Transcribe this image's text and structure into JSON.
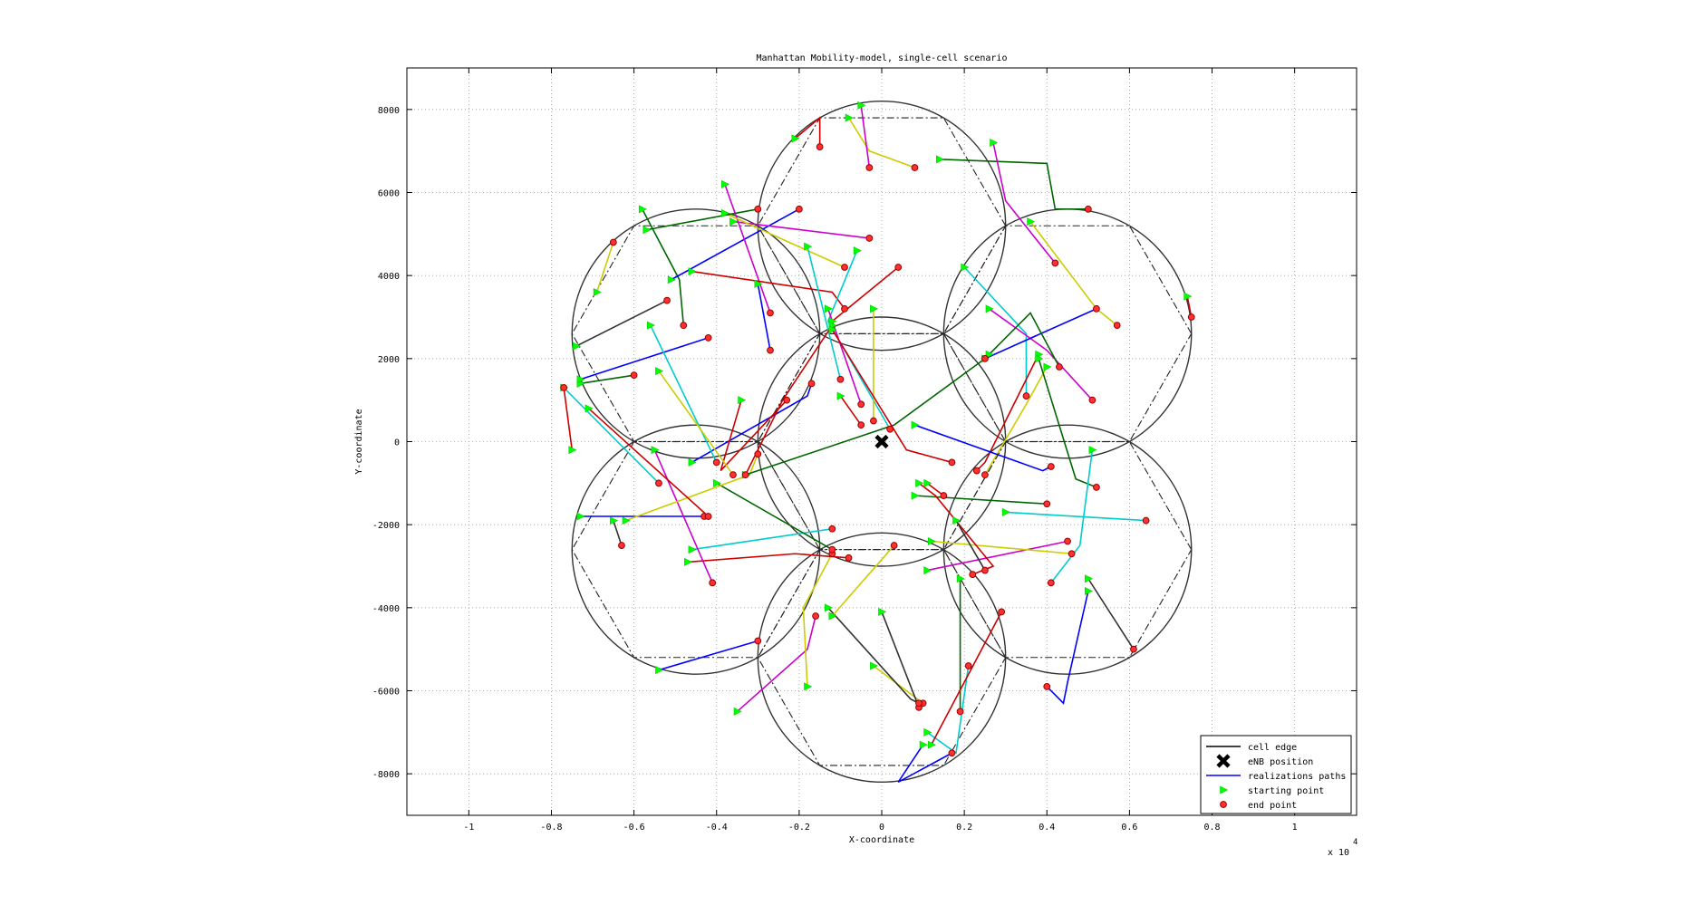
{
  "chart_data": {
    "type": "line",
    "title": "Manhattan Mobility-model, single-cell scenario",
    "xlabel": "X-coordinate",
    "ylabel": "Y-coordinate",
    "x_multiplier_label": "x 10",
    "x_multiplier_exponent": "4",
    "xlim": [
      -11500,
      11500
    ],
    "ylim": [
      -9000,
      9000
    ],
    "xticks": [
      -10000,
      -8000,
      -6000,
      -4000,
      -2000,
      0,
      2000,
      4000,
      6000,
      8000,
      10000
    ],
    "xtick_labels": [
      "-1",
      "-0.8",
      "-0.6",
      "-0.4",
      "-0.2",
      "0",
      "0.2",
      "0.4",
      "0.6",
      "0.8",
      "1"
    ],
    "yticks": [
      -8000,
      -6000,
      -4000,
      -2000,
      0,
      2000,
      4000,
      6000,
      8000
    ],
    "ytick_labels": [
      "-8000",
      "-6000",
      "-4000",
      "-2000",
      "0",
      "2000",
      "4000",
      "6000",
      "8000"
    ],
    "grid": true,
    "legend_position": "bottom-right",
    "legend": [
      {
        "label": "cell edge",
        "kind": "line",
        "color": "#000000"
      },
      {
        "label": "eNB position",
        "kind": "xmarker",
        "color": "#000000"
      },
      {
        "label": "realizations paths",
        "kind": "line",
        "color": "#0000ff"
      },
      {
        "label": "starting point",
        "kind": "triangle",
        "color": "#00ff00"
      },
      {
        "label": "end point",
        "kind": "circle",
        "color": "#ff0000"
      }
    ],
    "cell_radius": 3000,
    "hexagon_radius": 3000,
    "cell_centers": [
      [
        0,
        0
      ],
      [
        0,
        5200
      ],
      [
        4500,
        2600
      ],
      [
        4500,
        -2600
      ],
      [
        0,
        -5200
      ],
      [
        -4500,
        -2600
      ],
      [
        -4500,
        2600
      ]
    ],
    "enb_position": [
      0,
      0
    ],
    "paths": [
      {
        "color": "#cccc00",
        "points": [
          [
            -800,
            7800
          ],
          [
            -300,
            7000
          ],
          [
            800,
            6600
          ]
        ]
      },
      {
        "color": "#cc00cc",
        "points": [
          [
            -500,
            8100
          ],
          [
            -300,
            6600
          ]
        ]
      },
      {
        "color": "#cc0000",
        "points": [
          [
            -2100,
            7300
          ],
          [
            -1500,
            7800
          ],
          [
            -1500,
            7100
          ]
        ]
      },
      {
        "color": "#006600",
        "points": [
          [
            1400,
            6800
          ],
          [
            4000,
            6700
          ],
          [
            4200,
            5600
          ],
          [
            5000,
            5600
          ]
        ]
      },
      {
        "color": "#cc00cc",
        "points": [
          [
            2700,
            7200
          ],
          [
            3000,
            5800
          ],
          [
            4200,
            4300
          ]
        ]
      },
      {
        "color": "#cccc00",
        "points": [
          [
            3600,
            5300
          ],
          [
            5200,
            3200
          ],
          [
            5700,
            2800
          ]
        ]
      },
      {
        "color": "#cc0000",
        "points": [
          [
            7400,
            3500
          ],
          [
            7500,
            3000
          ]
        ]
      },
      {
        "color": "#00cccc",
        "points": [
          [
            2000,
            4200
          ],
          [
            3500,
            2600
          ],
          [
            3500,
            1100
          ]
        ]
      },
      {
        "color": "#cc00cc",
        "points": [
          [
            2600,
            3200
          ],
          [
            4000,
            2200
          ],
          [
            5100,
            1000
          ]
        ]
      },
      {
        "color": "#0000ff",
        "points": [
          [
            2500,
            2000
          ],
          [
            5200,
            3200
          ]
        ]
      },
      {
        "color": "#cc0000",
        "points": [
          [
            3800,
            2100
          ],
          [
            2500,
            -500
          ],
          [
            2300,
            -700
          ]
        ]
      },
      {
        "color": "#006600",
        "points": [
          [
            2600,
            2100
          ],
          [
            3600,
            3100
          ],
          [
            4300,
            1800
          ]
        ]
      },
      {
        "color": "#cccc00",
        "points": [
          [
            4000,
            1800
          ],
          [
            3500,
            900
          ],
          [
            2500,
            -800
          ]
        ]
      },
      {
        "color": "#0000ff",
        "points": [
          [
            800,
            400
          ],
          [
            3900,
            -700
          ],
          [
            4100,
            -600
          ]
        ]
      },
      {
        "color": "#006600",
        "points": [
          [
            3800,
            2000
          ],
          [
            4700,
            -900
          ],
          [
            5200,
            -1100
          ]
        ]
      },
      {
        "color": "#00cccc",
        "points": [
          [
            5100,
            -200
          ],
          [
            4800,
            -2500
          ],
          [
            4100,
            -3400
          ]
        ]
      },
      {
        "color": "#00cccc",
        "points": [
          [
            3000,
            -1700
          ],
          [
            6400,
            -1900
          ]
        ]
      },
      {
        "color": "#006600",
        "points": [
          [
            800,
            -1300
          ],
          [
            4000,
            -1500
          ]
        ]
      },
      {
        "color": "#cc00cc",
        "points": [
          [
            1100,
            -3100
          ],
          [
            4500,
            -2400
          ]
        ]
      },
      {
        "color": "#cccc00",
        "points": [
          [
            1200,
            -2400
          ],
          [
            4600,
            -2700
          ]
        ]
      },
      {
        "color": "#cc0000",
        "points": [
          [
            900,
            -1000
          ],
          [
            1300,
            -1300
          ],
          [
            2700,
            -3000
          ],
          [
            2200,
            -3200
          ]
        ]
      },
      {
        "color": "#333333",
        "points": [
          [
            1800,
            -1900
          ],
          [
            2500,
            -3100
          ]
        ]
      },
      {
        "color": "#0000ff",
        "points": [
          [
            5000,
            -3600
          ],
          [
            4500,
            -5800
          ],
          [
            4400,
            -6300
          ],
          [
            4000,
            -5900
          ]
        ]
      },
      {
        "color": "#333333",
        "points": [
          [
            5000,
            -3300
          ],
          [
            6100,
            -5000
          ]
        ]
      },
      {
        "color": "#cc0000",
        "points": [
          [
            1100,
            -1000
          ],
          [
            1500,
            -1300
          ]
        ]
      },
      {
        "color": "#0000ff",
        "points": [
          [
            1000,
            -7300
          ],
          [
            400,
            -8200
          ],
          [
            1700,
            -7500
          ]
        ]
      },
      {
        "color": "#00cccc",
        "points": [
          [
            1100,
            -7000
          ],
          [
            1800,
            -7500
          ],
          [
            2100,
            -5400
          ]
        ]
      },
      {
        "color": "#006600",
        "points": [
          [
            1900,
            -3300
          ],
          [
            1900,
            -6500
          ]
        ]
      },
      {
        "color": "#cc0000",
        "points": [
          [
            1200,
            -7300
          ],
          [
            2900,
            -4100
          ]
        ]
      },
      {
        "color": "#cccc00",
        "points": [
          [
            -200,
            -5400
          ],
          [
            1000,
            -6300
          ]
        ]
      },
      {
        "color": "#333333",
        "points": [
          [
            0,
            -4100
          ],
          [
            900,
            -6400
          ]
        ]
      },
      {
        "color": "#cc00cc",
        "points": [
          [
            -3500,
            -6500
          ],
          [
            -1800,
            -5000
          ],
          [
            -1600,
            -4200
          ]
        ]
      },
      {
        "color": "#0000ff",
        "points": [
          [
            -5400,
            -5500
          ],
          [
            -3000,
            -4800
          ]
        ]
      },
      {
        "color": "#cccc00",
        "points": [
          [
            -1800,
            -5900
          ],
          [
            -1900,
            -4000
          ],
          [
            -1200,
            -2700
          ]
        ]
      },
      {
        "color": "#333333",
        "points": [
          [
            -1300,
            -4000
          ],
          [
            700,
            -6200
          ],
          [
            900,
            -6300
          ]
        ]
      },
      {
        "color": "#cccc00",
        "points": [
          [
            -1200,
            -4200
          ],
          [
            300,
            -2500
          ]
        ]
      },
      {
        "color": "#cc0000",
        "points": [
          [
            -4700,
            -2900
          ],
          [
            -2100,
            -2700
          ],
          [
            -800,
            -2800
          ]
        ]
      },
      {
        "color": "#00cccc",
        "points": [
          [
            -4600,
            -2600
          ],
          [
            -1200,
            -2100
          ]
        ]
      },
      {
        "color": "#006600",
        "points": [
          [
            -4000,
            -1000
          ],
          [
            -1200,
            -2600
          ]
        ]
      },
      {
        "color": "#0000ff",
        "points": [
          [
            -7300,
            -1800
          ],
          [
            -4300,
            -1800
          ]
        ]
      },
      {
        "color": "#cc00cc",
        "points": [
          [
            -5500,
            -200
          ],
          [
            -4100,
            -3400
          ]
        ]
      },
      {
        "color": "#cccc00",
        "points": [
          [
            -6200,
            -1900
          ],
          [
            -3200,
            -800
          ],
          [
            -3000,
            -300
          ]
        ]
      },
      {
        "color": "#333333",
        "points": [
          [
            -6500,
            -1900
          ],
          [
            -6300,
            -2500
          ]
        ]
      },
      {
        "color": "#006600",
        "points": [
          [
            -7300,
            1400
          ],
          [
            -6000,
            1600
          ]
        ]
      },
      {
        "color": "#00cccc",
        "points": [
          [
            -7700,
            1300
          ],
          [
            -5400,
            -1000
          ]
        ]
      },
      {
        "color": "#0000ff",
        "points": [
          [
            -7300,
            1500
          ],
          [
            -4200,
            2500
          ]
        ]
      },
      {
        "color": "#cc0000",
        "points": [
          [
            -7500,
            -200
          ],
          [
            -7700,
            1300
          ]
        ]
      },
      {
        "color": "#cc0000",
        "points": [
          [
            -7100,
            800
          ],
          [
            -4200,
            -1800
          ]
        ]
      },
      {
        "color": "#cccc00",
        "points": [
          [
            -6900,
            3600
          ],
          [
            -6500,
            4800
          ]
        ]
      },
      {
        "color": "#333333",
        "points": [
          [
            -7400,
            2300
          ],
          [
            -5200,
            3400
          ]
        ]
      },
      {
        "color": "#006600",
        "points": [
          [
            -5800,
            5600
          ],
          [
            -4900,
            3900
          ],
          [
            -4800,
            2800
          ]
        ]
      },
      {
        "color": "#0000ff",
        "points": [
          [
            -5100,
            3900
          ],
          [
            -2000,
            5600
          ]
        ]
      },
      {
        "color": "#cc00cc",
        "points": [
          [
            -3800,
            6200
          ],
          [
            -2700,
            3100
          ]
        ]
      },
      {
        "color": "#cc00cc",
        "points": [
          [
            -3600,
            5300
          ],
          [
            -300,
            4900
          ]
        ]
      },
      {
        "color": "#cc0000",
        "points": [
          [
            -4600,
            4100
          ],
          [
            -1200,
            3600
          ],
          [
            -900,
            3200
          ]
        ]
      },
      {
        "color": "#cccc00",
        "points": [
          [
            -3800,
            5500
          ],
          [
            -900,
            4200
          ]
        ]
      },
      {
        "color": "#00cccc",
        "points": [
          [
            -1800,
            4700
          ],
          [
            -1000,
            1500
          ]
        ]
      },
      {
        "color": "#00cccc",
        "points": [
          [
            -600,
            4600
          ],
          [
            -1300,
            2900
          ],
          [
            200,
            300
          ]
        ]
      },
      {
        "color": "#cc0000",
        "points": [
          [
            -1200,
            2900
          ],
          [
            400,
            4200
          ]
        ]
      },
      {
        "color": "#cc00cc",
        "points": [
          [
            -1300,
            3200
          ],
          [
            -500,
            900
          ]
        ]
      },
      {
        "color": "#cccc00",
        "points": [
          [
            -200,
            3200
          ],
          [
            -200,
            500
          ]
        ]
      },
      {
        "color": "#cc0000",
        "points": [
          [
            -1000,
            1100
          ],
          [
            -500,
            400
          ]
        ]
      },
      {
        "color": "#0000ff",
        "points": [
          [
            -4600,
            -500
          ],
          [
            -1800,
            1100
          ],
          [
            -1700,
            1400
          ]
        ]
      },
      {
        "color": "#006600",
        "points": [
          [
            -3300,
            -800
          ],
          [
            300,
            400
          ],
          [
            2500,
            2000
          ]
        ]
      },
      {
        "color": "#cc0000",
        "points": [
          [
            -1200,
            2800
          ],
          [
            -2400,
            1000
          ],
          [
            -3300,
            -800
          ]
        ]
      },
      {
        "color": "#00cccc",
        "points": [
          [
            -5600,
            2800
          ],
          [
            -4000,
            -500
          ]
        ]
      },
      {
        "color": "#cc0000",
        "points": [
          [
            -3400,
            1000
          ],
          [
            -3900,
            -700
          ],
          [
            -2300,
            1000
          ]
        ]
      },
      {
        "color": "#006600",
        "points": [
          [
            -5700,
            5100
          ],
          [
            -3000,
            5600
          ]
        ]
      },
      {
        "color": "#cccc00",
        "points": [
          [
            -5400,
            1700
          ],
          [
            -3600,
            -800
          ]
        ]
      },
      {
        "color": "#cc0000",
        "points": [
          [
            -1200,
            2700
          ],
          [
            600,
            -200
          ],
          [
            1700,
            -500
          ]
        ]
      },
      {
        "color": "#0000ff",
        "points": [
          [
            -3000,
            3800
          ],
          [
            -2700,
            2200
          ]
        ]
      }
    ]
  }
}
